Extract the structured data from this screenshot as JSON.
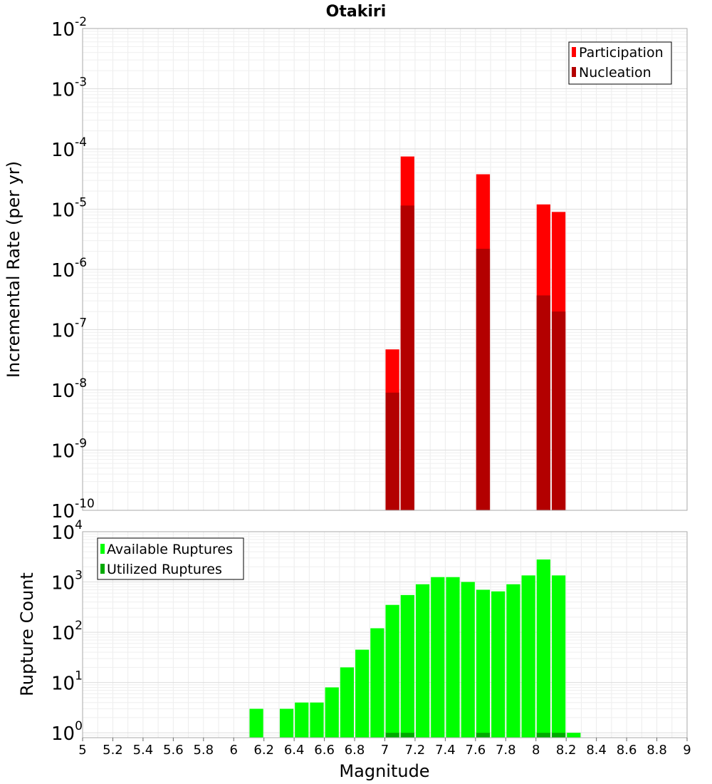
{
  "chart_data": [
    {
      "type": "bar",
      "title": "Otakiri",
      "xlabel": "Magnitude",
      "ylabel": "Incremental Rate (per yr)",
      "y_scale": "log",
      "xlim": [
        5,
        9
      ],
      "ylim": [
        1e-10,
        0.01
      ],
      "bar_width": 0.1,
      "grid": true,
      "legend_position": "top-right",
      "y_tick_exponents": [
        "-10",
        "-9",
        "-8",
        "-7",
        "-6",
        "-5",
        "-4",
        "-3",
        "-2"
      ],
      "y_tick_base": "10",
      "series": [
        {
          "name": "Participation",
          "color": "#ff0000",
          "x": [
            7.05,
            7.15,
            7.65,
            8.05,
            8.15
          ],
          "values": [
            4.7e-08,
            7.5e-05,
            3.8e-05,
            1.2e-05,
            9e-06
          ]
        },
        {
          "name": "Nucleation",
          "color": "#b30000",
          "x": [
            7.05,
            7.15,
            7.65,
            8.05,
            8.15
          ],
          "values": [
            9e-09,
            1.15e-05,
            2.2e-06,
            3.7e-07,
            2e-07
          ]
        }
      ]
    },
    {
      "type": "bar",
      "xlabel": "Magnitude",
      "ylabel": "Rupture Count",
      "y_scale": "log",
      "xlim": [
        5,
        9
      ],
      "ylim": [
        0.8,
        10000
      ],
      "bar_width": 0.1,
      "grid": true,
      "legend_position": "top-left",
      "x_ticks": [
        "5",
        "5.2",
        "5.4",
        "5.6",
        "5.8",
        "6",
        "6.2",
        "6.4",
        "6.6",
        "6.8",
        "7",
        "7.2",
        "7.4",
        "7.6",
        "7.8",
        "8",
        "8.2",
        "8.4",
        "8.6",
        "8.8",
        "9"
      ],
      "y_tick_exponents": [
        "0",
        "1",
        "2",
        "3",
        "4"
      ],
      "y_tick_base": "10",
      "series": [
        {
          "name": "Available Ruptures",
          "color": "#00ff00",
          "x": [
            6.15,
            6.35,
            6.45,
            6.55,
            6.65,
            6.75,
            6.85,
            6.95,
            7.05,
            7.15,
            7.25,
            7.35,
            7.45,
            7.55,
            7.65,
            7.75,
            7.85,
            7.95,
            8.05,
            8.15,
            8.25
          ],
          "values": [
            3,
            3,
            4,
            4,
            8,
            20,
            45,
            120,
            350,
            550,
            900,
            1250,
            1250,
            1000,
            700,
            650,
            900,
            1350,
            2800,
            1350,
            1
          ]
        },
        {
          "name": "Utilized Ruptures",
          "color": "#00aa00",
          "x": [
            7.05,
            7.15,
            7.65,
            8.05,
            8.15
          ],
          "values": [
            1,
            1,
            1,
            1,
            1
          ]
        }
      ]
    }
  ]
}
